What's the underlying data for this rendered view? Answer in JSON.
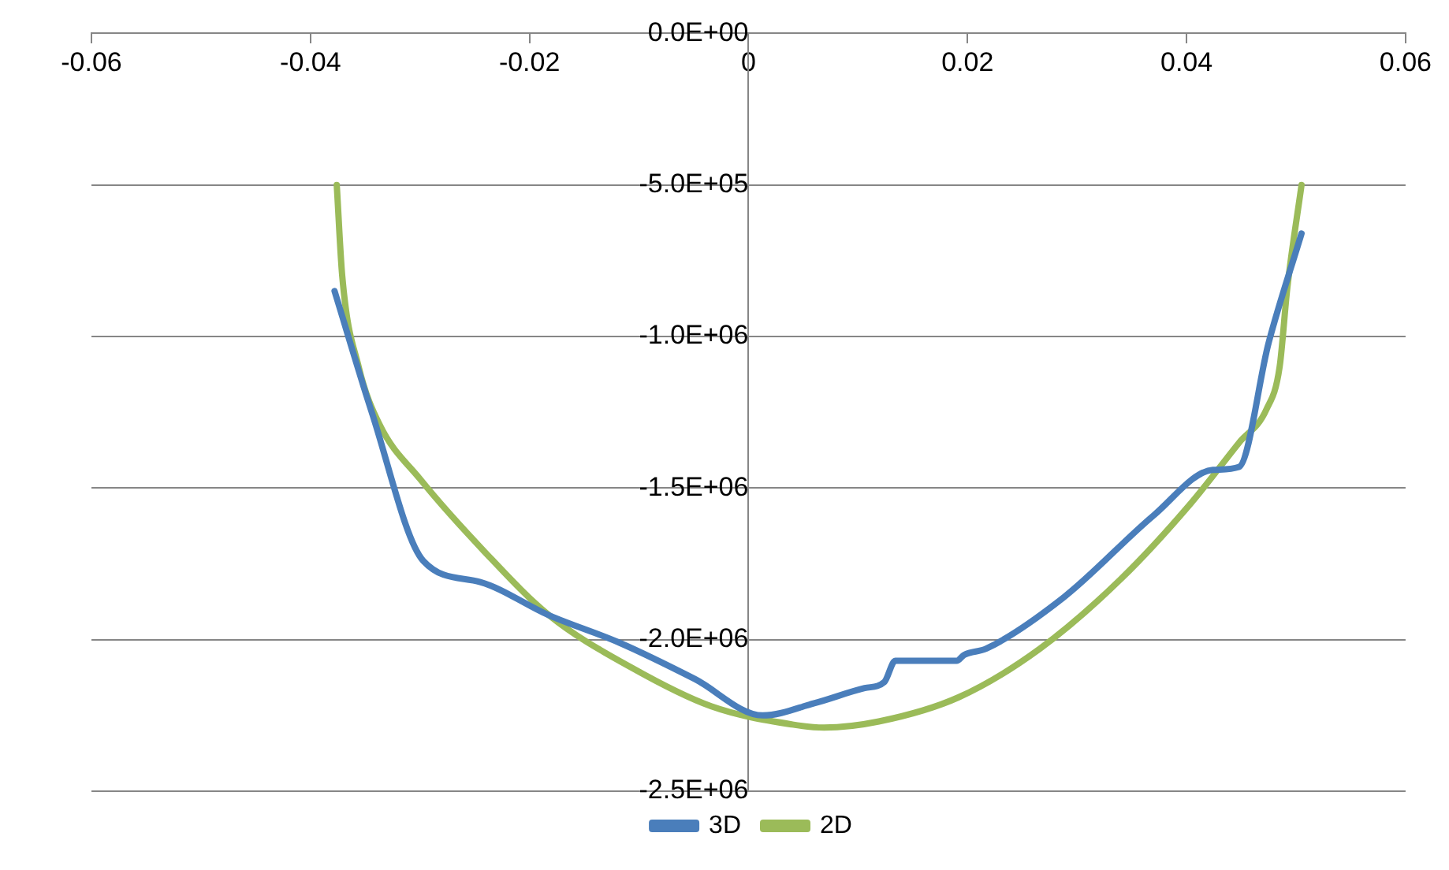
{
  "chart_data": {
    "type": "line",
    "xlim": [
      -0.06,
      0.06
    ],
    "xticks": [
      -0.06,
      -0.04,
      -0.02,
      0,
      0.02,
      0.04,
      0.06
    ],
    "ylim": [
      -2500000,
      0
    ],
    "yticks": [
      {
        "value": 0,
        "label": "0.0E+00"
      },
      {
        "value": -500000,
        "label": "-5.0E+05"
      },
      {
        "value": -1000000,
        "label": "-1.0E+06"
      },
      {
        "value": -1500000,
        "label": "-1.5E+06"
      },
      {
        "value": -2000000,
        "label": "-2.0E+06"
      },
      {
        "value": -2500000,
        "label": "-2.5E+06"
      }
    ],
    "grid": "y",
    "legend": "bottom",
    "marker": "none",
    "line_style": "solid",
    "series": [
      {
        "name": "3D",
        "color": "#4a7ebb",
        "x": [
          -0.0378,
          -0.0344,
          -0.0297,
          -0.0245,
          -0.0182,
          -0.0118,
          -0.0049,
          0.0013,
          0.006,
          0.0106,
          0.0124,
          0.0134,
          0.019,
          0.0197,
          0.0217,
          0.0288,
          0.037,
          0.0424,
          0.0448,
          0.0475,
          0.0505
        ],
        "values": [
          -850000,
          -1250000,
          -1740000,
          -1810000,
          -1920000,
          -2010000,
          -2130000,
          -2250000,
          -2210000,
          -2160000,
          -2140000,
          -2070000,
          -2070000,
          -2050000,
          -2030000,
          -1860000,
          -1590000,
          -1440000,
          -1430000,
          -1020000,
          -660000
        ]
      },
      {
        "name": "2D",
        "color": "#9bbb59",
        "x": [
          -0.0376,
          -0.0371,
          -0.0356,
          -0.0337,
          -0.03,
          -0.0241,
          -0.0182,
          -0.0108,
          -0.0034,
          0.004,
          0.0069,
          0.0119,
          0.0192,
          0.0266,
          0.034,
          0.0404,
          0.0448,
          0.0473,
          0.0485,
          0.0492,
          0.0505
        ],
        "values": [
          -500000,
          -800000,
          -1100000,
          -1290000,
          -1470000,
          -1710000,
          -1920000,
          -2090000,
          -2220000,
          -2280000,
          -2290000,
          -2270000,
          -2190000,
          -2030000,
          -1800000,
          -1550000,
          -1350000,
          -1240000,
          -1100000,
          -840000,
          -500000
        ]
      }
    ]
  }
}
